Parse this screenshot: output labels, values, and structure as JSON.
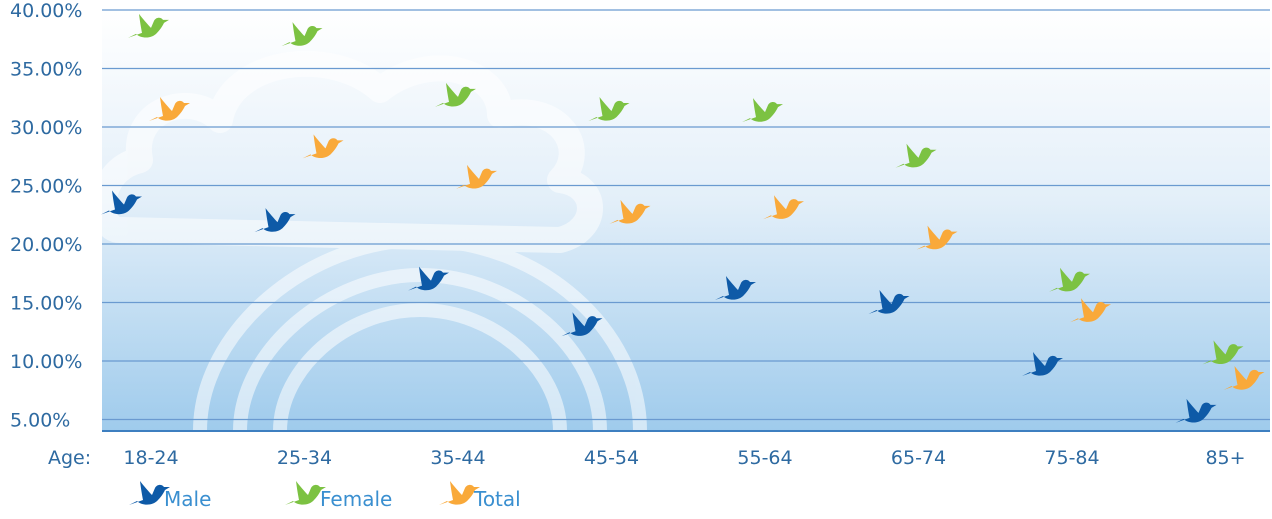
{
  "chart_data": {
    "type": "scatter",
    "x_prefix": "Age:",
    "categories": [
      "18-24",
      "25-34",
      "35-44",
      "45-54",
      "55-64",
      "65-74",
      "75-84",
      "85+"
    ],
    "y_ticks": [
      "5.00%",
      "10.00%",
      "15.00%",
      "20.00%",
      "25.00%",
      "30.00%",
      "35.00%",
      "40.00%"
    ],
    "y_tick_values": [
      5,
      10,
      15,
      20,
      25,
      30,
      35,
      40
    ],
    "ylim": [
      0,
      40
    ],
    "grid": true,
    "legend_position": "bottom-left",
    "series": [
      {
        "name": "Male",
        "color": "#0e5aa7",
        "icon": "bird-icon",
        "values": [
          23.2,
          21.7,
          16.7,
          12.8,
          15.9,
          14.7,
          9.4,
          5.4
        ]
      },
      {
        "name": "Female",
        "color": "#7cc242",
        "icon": "bird-icon",
        "values": [
          38.3,
          37.6,
          32.4,
          31.2,
          31.1,
          27.2,
          16.6,
          10.4
        ]
      },
      {
        "name": "Total",
        "color": "#f9a93a",
        "icon": "bird-icon",
        "values": [
          31.2,
          28.0,
          25.4,
          22.4,
          22.8,
          20.2,
          14.0,
          8.2
        ]
      }
    ]
  }
}
